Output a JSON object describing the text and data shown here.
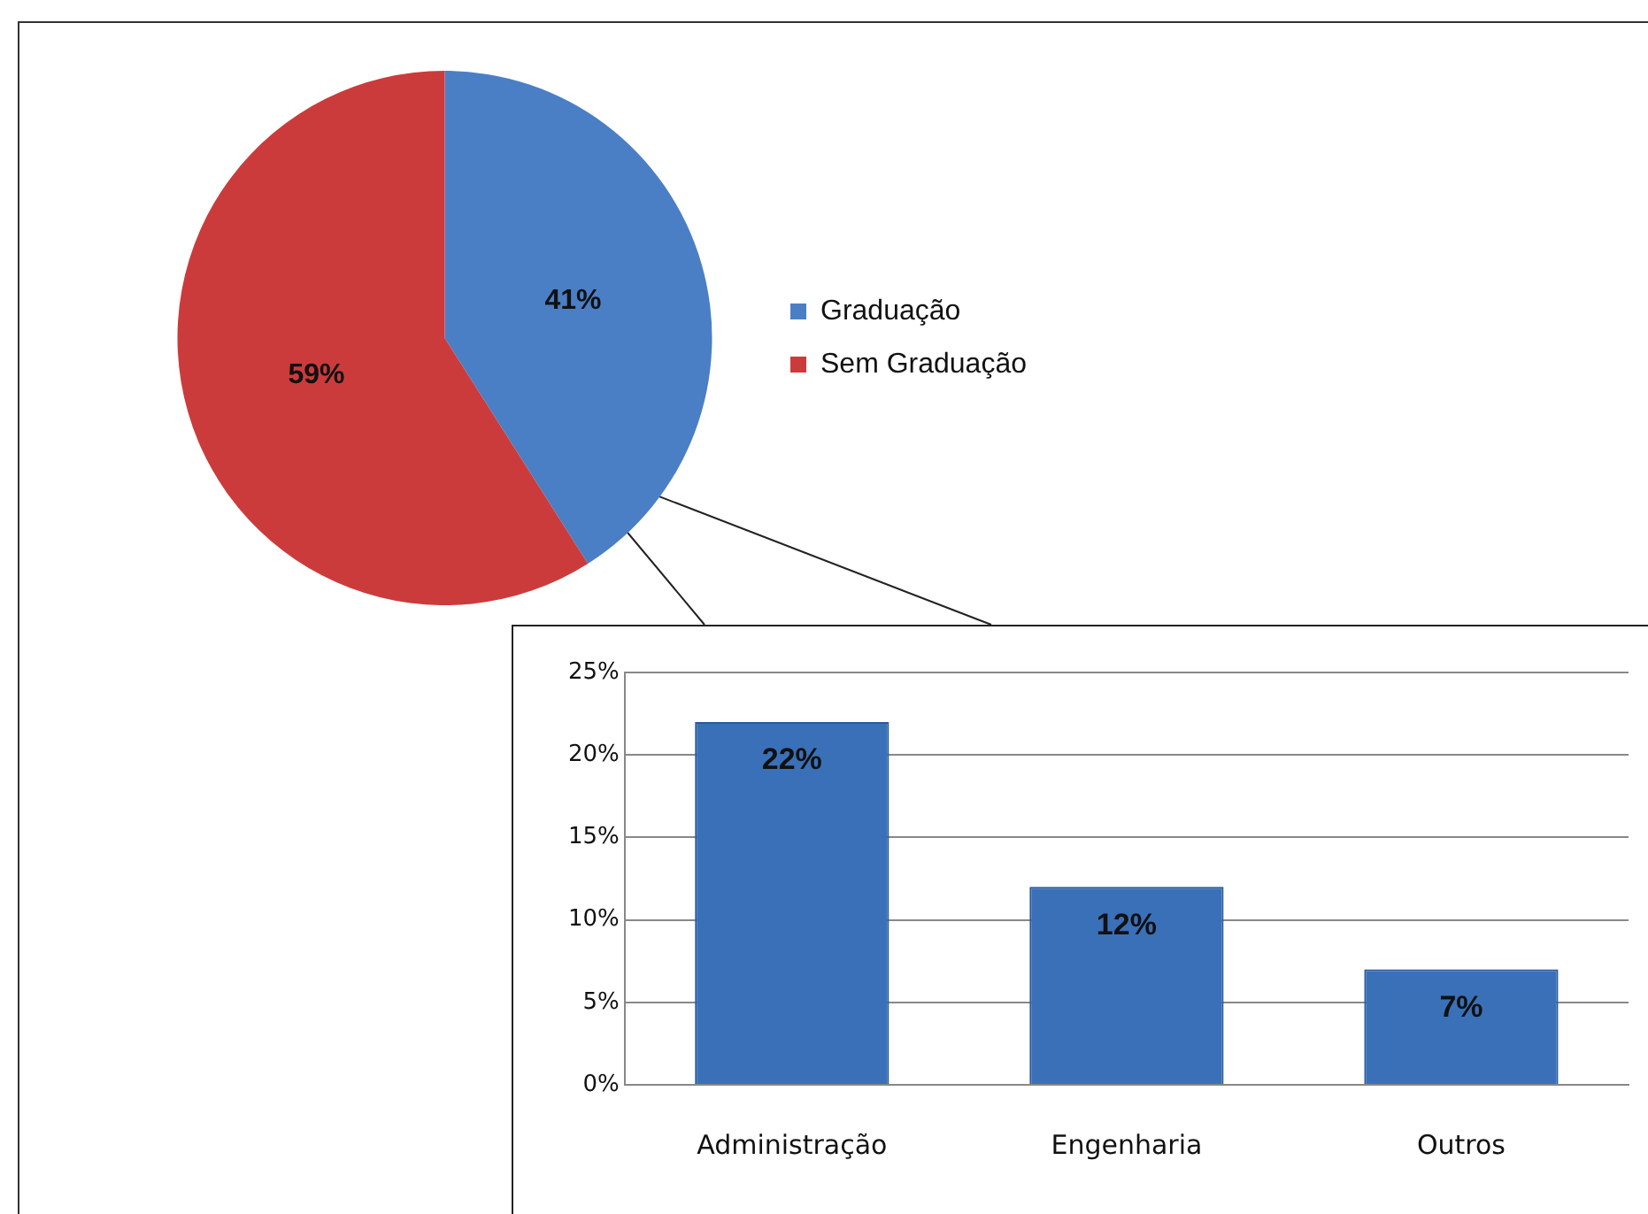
{
  "chart_data": [
    {
      "type": "pie",
      "categories": [
        "Graduação",
        "Sem Graduação"
      ],
      "values": [
        41,
        59
      ],
      "colors": [
        "#4a7fc6",
        "#cc3b3b"
      ],
      "value_labels": [
        "41%",
        "59%"
      ],
      "legend": "right"
    },
    {
      "type": "bar",
      "categories": [
        "Administração",
        "Engenharia",
        "Outros"
      ],
      "values": [
        22,
        12,
        7
      ],
      "color": "#3a70b8",
      "value_labels": [
        "22%",
        "12%",
        "7%"
      ],
      "ylim": [
        0,
        25
      ],
      "yticks": [
        {
          "value": 0,
          "label": "0%"
        },
        {
          "value": 5,
          "label": "5%"
        },
        {
          "value": 10,
          "label": "10%"
        },
        {
          "value": 15,
          "label": "15%"
        },
        {
          "value": 20,
          "label": "20%"
        },
        {
          "value": 25,
          "label": "25%"
        }
      ],
      "grid": "y"
    }
  ]
}
